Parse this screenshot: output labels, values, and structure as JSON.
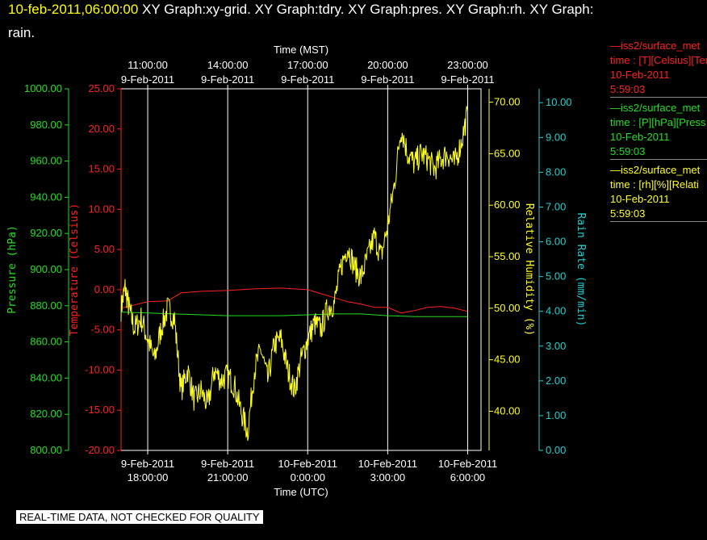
{
  "header": {
    "datetime": "10-feb-2011,06:00:00",
    "line1_rest": "  XY Graph:xy-grid.  XY Graph:tdry.  XY Graph:pres.  XY Graph:rh.  XY Graph:",
    "line2": "rain."
  },
  "legend": [
    {
      "line1": "—iss2/surface_met",
      "line2": "time : [T][Celsius][Temp",
      "line3": "10-Feb-2011",
      "line4": "5:59:03",
      "color": "#ff2020"
    },
    {
      "line1": "—iss2/surface_met",
      "line2": "time : [P][hPa][Press",
      "line3": "10-Feb-2011",
      "line4": "5:59:03",
      "color": "#20e020"
    },
    {
      "line1": "—iss2/surface_met",
      "line2": "time : [rh][%][Relati",
      "line3": "10-Feb-2011",
      "line4": "5:59:03",
      "color": "#ffff20"
    }
  ],
  "footer_notice": "REAL-TIME DATA, NOT CHECKED FOR QUALITY",
  "chart_data": {
    "type": "line",
    "x_range_utc_hours": [
      17,
      30.5
    ],
    "x_top_label": "Time (MST)",
    "x_bottom_label": "Time (UTC)",
    "x_top_ticks": [
      {
        "x": 18,
        "time": "11:00:00",
        "date": "9-Feb-2011"
      },
      {
        "x": 21,
        "time": "14:00:00",
        "date": "9-Feb-2011"
      },
      {
        "x": 24,
        "time": "17:00:00",
        "date": "9-Feb-2011"
      },
      {
        "x": 27,
        "time": "20:00:00",
        "date": "9-Feb-2011"
      },
      {
        "x": 30,
        "time": "23:00:00",
        "date": "9-Feb-2011"
      }
    ],
    "x_bottom_ticks": [
      {
        "x": 18,
        "date": "9-Feb-2011",
        "time": "18:00:00"
      },
      {
        "x": 21,
        "date": "9-Feb-2011",
        "time": "21:00:00"
      },
      {
        "x": 24,
        "date": "10-Feb-2011",
        "time": "0:00:00"
      },
      {
        "x": 27,
        "date": "10-Feb-2011",
        "time": "3:00:00"
      },
      {
        "x": 30,
        "date": "10-Feb-2011",
        "time": "6:00:00"
      }
    ],
    "axes": {
      "pressure": {
        "label": "Pressure (hPa)",
        "range": [
          800,
          1000
        ],
        "ticks": [
          "800.00",
          "820.00",
          "840.00",
          "860.00",
          "880.00",
          "900.00",
          "920.00",
          "940.00",
          "960.00",
          "980.00",
          "1000.00"
        ],
        "color": "#20e020"
      },
      "temperature": {
        "label": "Temperature (Celsius)",
        "range": [
          -20,
          25
        ],
        "ticks": [
          "-20.00",
          "-15.00",
          "-10.00",
          "-5.00",
          "0.00",
          "5.00",
          "10.00",
          "15.00",
          "20.00",
          "25.00"
        ],
        "color": "#ff2020"
      },
      "humidity": {
        "label": "Relative Humidity (%)",
        "range": [
          36.2,
          71.3
        ],
        "ticks": [
          "40.00",
          "45.00",
          "50.00",
          "55.00",
          "60.00",
          "65.00",
          "70.00"
        ],
        "color": "#ffff20"
      },
      "rain": {
        "label": "Rain Rate (mm/min)",
        "range": [
          0,
          10.4
        ],
        "ticks": [
          "0.00",
          "1.00",
          "2.00",
          "3.00",
          "4.00",
          "5.00",
          "6.00",
          "7.00",
          "8.00",
          "9.00",
          "10.00"
        ],
        "color": "#20d0d0"
      }
    },
    "series": [
      {
        "name": "Temperature",
        "axis": "temperature",
        "color": "#ff2020",
        "x": [
          17.0,
          18.0,
          18.75,
          19.25,
          20.0,
          21.0,
          22.0,
          23.0,
          24.0,
          24.5,
          25.0,
          25.5,
          26.0,
          26.5,
          27.0,
          27.5,
          28.0,
          28.5,
          29.0,
          29.5,
          30.0
        ],
        "y": [
          -2.3,
          -1.5,
          -1.4,
          -0.4,
          -0.2,
          -0.1,
          0.1,
          0.2,
          0.0,
          -0.5,
          -1.0,
          -1.5,
          -1.8,
          -2.2,
          -2.2,
          -2.9,
          -2.6,
          -2.2,
          -2.1,
          -2.3,
          -2.7
        ]
      },
      {
        "name": "Pressure",
        "axis": "pressure",
        "color": "#20e020",
        "x": [
          17.0,
          18.0,
          19.0,
          20.0,
          21.0,
          22.0,
          23.0,
          24.0,
          25.0,
          26.0,
          27.0,
          28.0,
          29.0,
          30.0
        ],
        "y": [
          876.5,
          876.0,
          875.5,
          875.0,
          874.5,
          874.5,
          874.5,
          875.0,
          875.5,
          875.5,
          874.5,
          874.0,
          874.0,
          874.0
        ]
      },
      {
        "name": "Relative Humidity",
        "axis": "humidity",
        "color": "#ffff20",
        "x": [
          17.0,
          17.15,
          17.3,
          17.5,
          17.75,
          18.0,
          18.25,
          18.5,
          18.75,
          19.0,
          19.25,
          19.5,
          19.75,
          20.0,
          20.25,
          20.5,
          20.75,
          21.0,
          21.25,
          21.5,
          21.75,
          22.0,
          22.25,
          22.5,
          22.75,
          23.0,
          23.25,
          23.5,
          23.75,
          24.0,
          24.25,
          24.5,
          24.75,
          25.0,
          25.25,
          25.5,
          25.75,
          26.0,
          26.25,
          26.5,
          26.75,
          27.0,
          27.25,
          27.5,
          27.75,
          28.0,
          28.25,
          28.5,
          28.75,
          29.0,
          29.25,
          29.5,
          29.75,
          30.0
        ],
        "y": [
          50.0,
          52.0,
          50.0,
          48.0,
          49.0,
          47.0,
          45.0,
          48.0,
          50.0,
          49.0,
          42.0,
          44.0,
          41.0,
          42.0,
          40.5,
          44.0,
          43.0,
          43.5,
          42.5,
          40.0,
          38.0,
          44.0,
          46.0,
          43.0,
          46.5,
          47.0,
          44.0,
          42.0,
          45.0,
          47.0,
          48.5,
          48.0,
          50.0,
          50.5,
          54.0,
          56.0,
          54.0,
          53.0,
          55.0,
          57.0,
          55.0,
          58.0,
          62.0,
          67.5,
          65.0,
          64.0,
          65.0,
          64.5,
          63.5,
          64.5,
          65.0,
          64.0,
          66.0,
          69.0
        ]
      },
      {
        "name": "Rain Rate",
        "axis": "rain",
        "color": "#20d0d0",
        "x": [],
        "y": []
      }
    ]
  }
}
